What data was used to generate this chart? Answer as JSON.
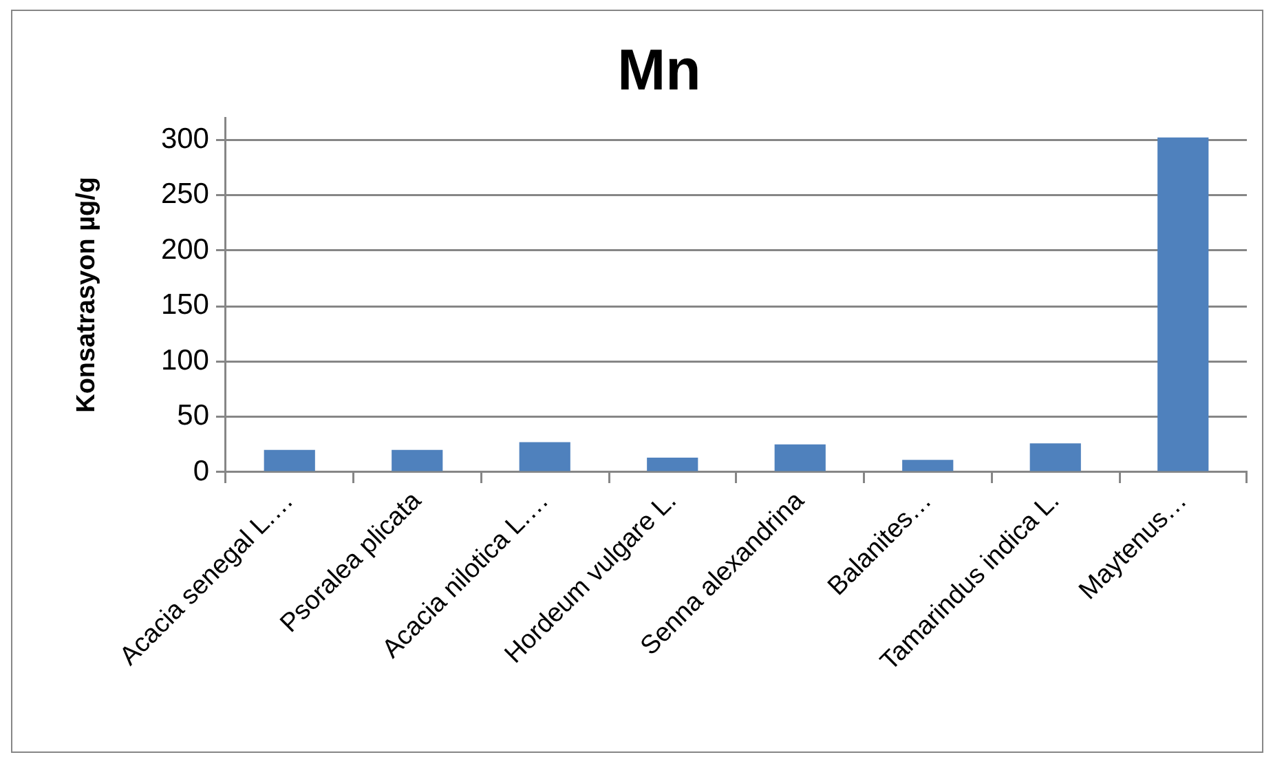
{
  "chart_data": {
    "type": "bar",
    "title": "Mn",
    "ylabel": "Konsatrasyon µg/g",
    "categories": [
      "Acacia senegal L.…",
      "Psoralea plicata",
      "Acacia nilotica L.…",
      "Hordeum vulgare L.",
      "Senna alexandrina",
      "Balanites…",
      "Tamarindus indica L.",
      "Maytenus…"
    ],
    "values": [
      20,
      20,
      27,
      13,
      25,
      11,
      26,
      302
    ],
    "color": "#4f81bd",
    "ylim": [
      0,
      320
    ],
    "yticks": [
      0,
      50,
      100,
      150,
      200,
      250,
      300
    ],
    "grid": "y"
  }
}
